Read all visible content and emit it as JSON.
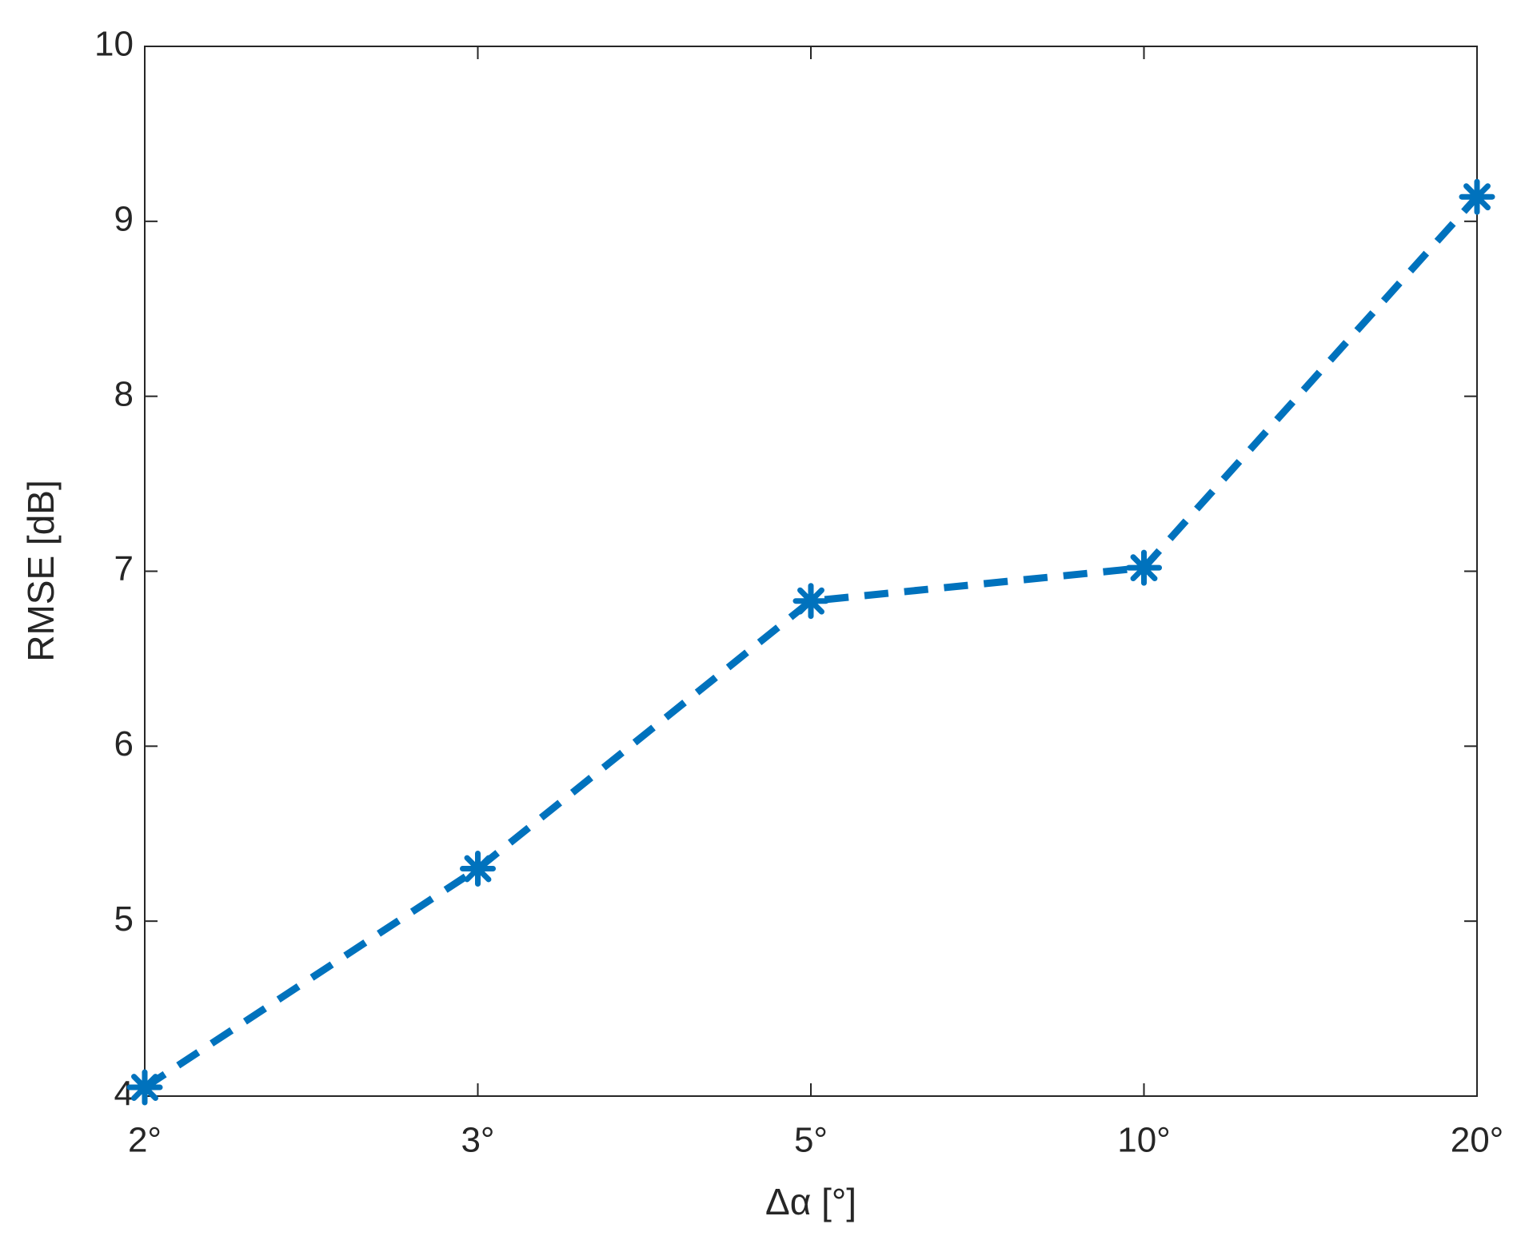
{
  "chart_data": {
    "type": "line",
    "categories": [
      "2°",
      "3°",
      "5°",
      "10°",
      "20°"
    ],
    "values": [
      4.05,
      5.3,
      6.83,
      7.02,
      9.14
    ],
    "color": "#0072bd",
    "xlabel": "Δα [°]",
    "ylabel": "RMSE [dB]",
    "ylim": [
      4,
      10
    ],
    "yticks": [
      4,
      5,
      6,
      7,
      8,
      9,
      10
    ],
    "grid": false
  }
}
